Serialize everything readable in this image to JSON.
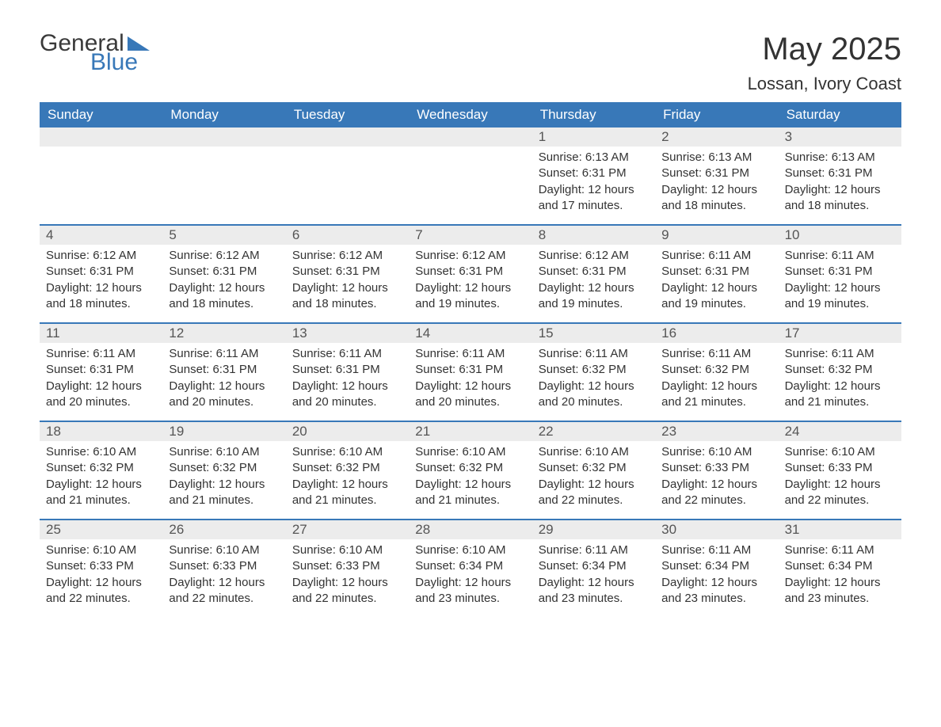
{
  "logo": {
    "general": "General",
    "blue": "Blue"
  },
  "title": "May 2025",
  "location": "Lossan, Ivory Coast",
  "colors": {
    "header_bg": "#3878b8",
    "header_text": "#ffffff",
    "daynum_bg": "#ececec",
    "border": "#3878b8",
    "text": "#333333",
    "background": "#ffffff"
  },
  "weekdays": [
    "Sunday",
    "Monday",
    "Tuesday",
    "Wednesday",
    "Thursday",
    "Friday",
    "Saturday"
  ],
  "weeks": [
    [
      null,
      null,
      null,
      null,
      {
        "n": "1",
        "sunrise": "6:13 AM",
        "sunset": "6:31 PM",
        "daylight": "12 hours and 17 minutes."
      },
      {
        "n": "2",
        "sunrise": "6:13 AM",
        "sunset": "6:31 PM",
        "daylight": "12 hours and 18 minutes."
      },
      {
        "n": "3",
        "sunrise": "6:13 AM",
        "sunset": "6:31 PM",
        "daylight": "12 hours and 18 minutes."
      }
    ],
    [
      {
        "n": "4",
        "sunrise": "6:12 AM",
        "sunset": "6:31 PM",
        "daylight": "12 hours and 18 minutes."
      },
      {
        "n": "5",
        "sunrise": "6:12 AM",
        "sunset": "6:31 PM",
        "daylight": "12 hours and 18 minutes."
      },
      {
        "n": "6",
        "sunrise": "6:12 AM",
        "sunset": "6:31 PM",
        "daylight": "12 hours and 18 minutes."
      },
      {
        "n": "7",
        "sunrise": "6:12 AM",
        "sunset": "6:31 PM",
        "daylight": "12 hours and 19 minutes."
      },
      {
        "n": "8",
        "sunrise": "6:12 AM",
        "sunset": "6:31 PM",
        "daylight": "12 hours and 19 minutes."
      },
      {
        "n": "9",
        "sunrise": "6:11 AM",
        "sunset": "6:31 PM",
        "daylight": "12 hours and 19 minutes."
      },
      {
        "n": "10",
        "sunrise": "6:11 AM",
        "sunset": "6:31 PM",
        "daylight": "12 hours and 19 minutes."
      }
    ],
    [
      {
        "n": "11",
        "sunrise": "6:11 AM",
        "sunset": "6:31 PM",
        "daylight": "12 hours and 20 minutes."
      },
      {
        "n": "12",
        "sunrise": "6:11 AM",
        "sunset": "6:31 PM",
        "daylight": "12 hours and 20 minutes."
      },
      {
        "n": "13",
        "sunrise": "6:11 AM",
        "sunset": "6:31 PM",
        "daylight": "12 hours and 20 minutes."
      },
      {
        "n": "14",
        "sunrise": "6:11 AM",
        "sunset": "6:31 PM",
        "daylight": "12 hours and 20 minutes."
      },
      {
        "n": "15",
        "sunrise": "6:11 AM",
        "sunset": "6:32 PM",
        "daylight": "12 hours and 20 minutes."
      },
      {
        "n": "16",
        "sunrise": "6:11 AM",
        "sunset": "6:32 PM",
        "daylight": "12 hours and 21 minutes."
      },
      {
        "n": "17",
        "sunrise": "6:11 AM",
        "sunset": "6:32 PM",
        "daylight": "12 hours and 21 minutes."
      }
    ],
    [
      {
        "n": "18",
        "sunrise": "6:10 AM",
        "sunset": "6:32 PM",
        "daylight": "12 hours and 21 minutes."
      },
      {
        "n": "19",
        "sunrise": "6:10 AM",
        "sunset": "6:32 PM",
        "daylight": "12 hours and 21 minutes."
      },
      {
        "n": "20",
        "sunrise": "6:10 AM",
        "sunset": "6:32 PM",
        "daylight": "12 hours and 21 minutes."
      },
      {
        "n": "21",
        "sunrise": "6:10 AM",
        "sunset": "6:32 PM",
        "daylight": "12 hours and 21 minutes."
      },
      {
        "n": "22",
        "sunrise": "6:10 AM",
        "sunset": "6:32 PM",
        "daylight": "12 hours and 22 minutes."
      },
      {
        "n": "23",
        "sunrise": "6:10 AM",
        "sunset": "6:33 PM",
        "daylight": "12 hours and 22 minutes."
      },
      {
        "n": "24",
        "sunrise": "6:10 AM",
        "sunset": "6:33 PM",
        "daylight": "12 hours and 22 minutes."
      }
    ],
    [
      {
        "n": "25",
        "sunrise": "6:10 AM",
        "sunset": "6:33 PM",
        "daylight": "12 hours and 22 minutes."
      },
      {
        "n": "26",
        "sunrise": "6:10 AM",
        "sunset": "6:33 PM",
        "daylight": "12 hours and 22 minutes."
      },
      {
        "n": "27",
        "sunrise": "6:10 AM",
        "sunset": "6:33 PM",
        "daylight": "12 hours and 22 minutes."
      },
      {
        "n": "28",
        "sunrise": "6:10 AM",
        "sunset": "6:34 PM",
        "daylight": "12 hours and 23 minutes."
      },
      {
        "n": "29",
        "sunrise": "6:11 AM",
        "sunset": "6:34 PM",
        "daylight": "12 hours and 23 minutes."
      },
      {
        "n": "30",
        "sunrise": "6:11 AM",
        "sunset": "6:34 PM",
        "daylight": "12 hours and 23 minutes."
      },
      {
        "n": "31",
        "sunrise": "6:11 AM",
        "sunset": "6:34 PM",
        "daylight": "12 hours and 23 minutes."
      }
    ]
  ],
  "labels": {
    "sunrise": "Sunrise:",
    "sunset": "Sunset:",
    "daylight": "Daylight:"
  }
}
